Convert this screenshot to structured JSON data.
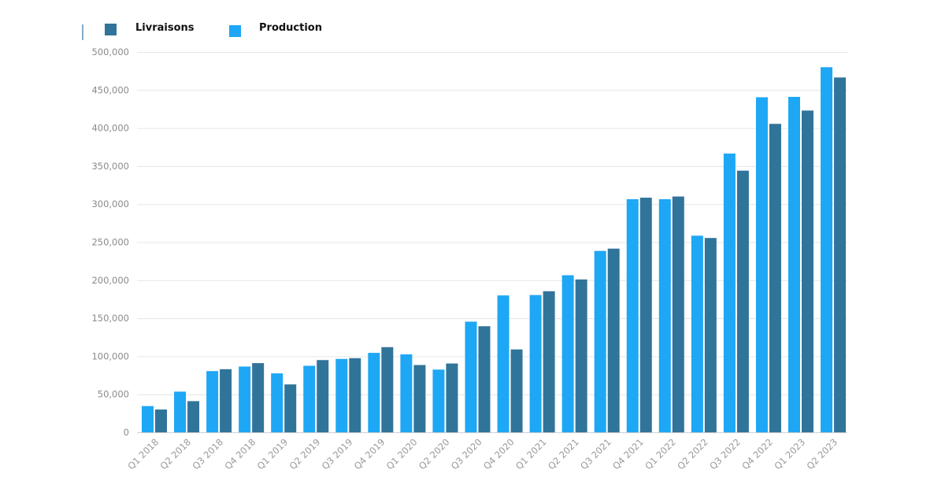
{
  "chart_data": {
    "type": "bar",
    "title": "",
    "xlabel": "",
    "ylabel": "",
    "legend_position": "top-left",
    "grid": true,
    "ylim": [
      0,
      500000
    ],
    "y_ticks": [
      "0",
      "50,000",
      "100,000",
      "150,000",
      "200,000",
      "250,000",
      "300,000",
      "350,000",
      "400,000",
      "450,000",
      "500,000"
    ],
    "categories": [
      "Q1 2018",
      "Q2 2018",
      "Q3 2018",
      "Q4 2018",
      "Q1 2019",
      "Q2 2019",
      "Q3 2019",
      "Q4 2019",
      "Q1 2020",
      "Q2 2020",
      "Q3 2020",
      "Q4 2020",
      "Q1 2021",
      "Q2 2021",
      "Q3 2021",
      "Q4 2021",
      "Q1 2022",
      "Q2 2022",
      "Q3 2022",
      "Q4 2022",
      "Q1 2023",
      "Q2 2023"
    ],
    "series": [
      {
        "name": "Production",
        "color": "#1ea7f5",
        "values": [
          34500,
          53500,
          80500,
          86500,
          77500,
          87500,
          96500,
          104500,
          102500,
          82500,
          145500,
          180000,
          180500,
          206500,
          238500,
          306500,
          306500,
          258500,
          366500,
          440500,
          441000,
          480000
        ]
      },
      {
        "name": "Livraisons",
        "color": "#31749a",
        "values": [
          30000,
          41000,
          83000,
          91000,
          63000,
          95000,
          97500,
          112000,
          88500,
          90500,
          139500,
          109000,
          185500,
          201000,
          241500,
          308500,
          310000,
          255500,
          344000,
          405500,
          423000,
          466500
        ]
      }
    ]
  }
}
